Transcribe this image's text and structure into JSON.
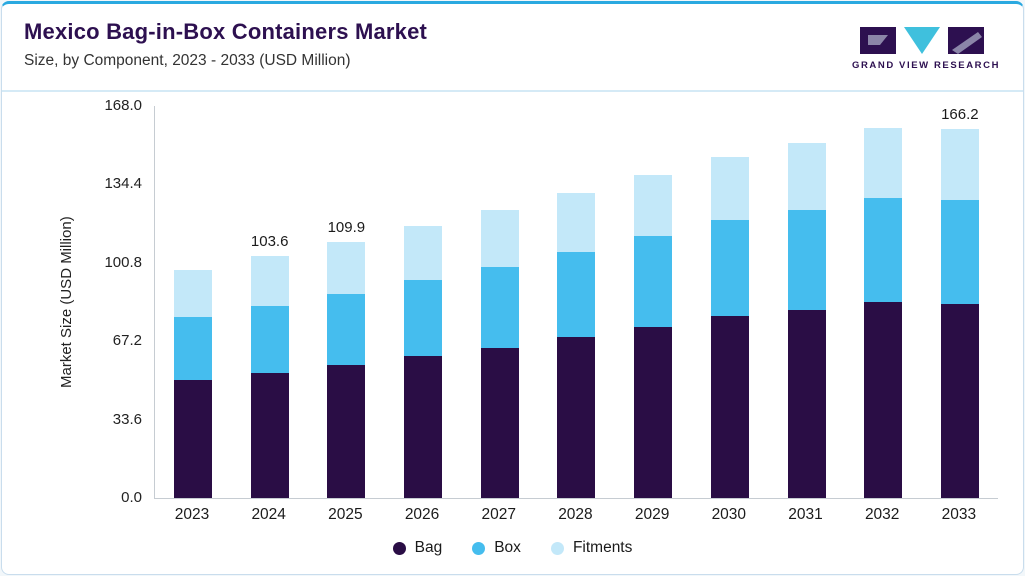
{
  "header": {
    "title": "Mexico Bag-in-Box Containers Market",
    "subtitle": "Size, by Component, 2023 - 2033 (USD Million)"
  },
  "logo": {
    "text": "GRAND VIEW RESEARCH"
  },
  "chart_data": {
    "type": "bar",
    "stacked": true,
    "title": "Mexico Bag-in-Box Containers Market Size, by Component, 2023 - 2033 (USD Million)",
    "ylabel": "Market Size (USD Million)",
    "ylim": [
      0,
      168
    ],
    "yticks": [
      "168.0",
      "134.4",
      "100.8",
      "67.2",
      "33.6",
      "0.0"
    ],
    "grid": false,
    "legend_position": "bottom",
    "categories": [
      "2023",
      "2024",
      "2025",
      "2026",
      "2027",
      "2028",
      "2029",
      "2030",
      "2031",
      "2032",
      "2033"
    ],
    "series": [
      {
        "name": "Bag",
        "color": "#2a0d45",
        "values": [
          50.5,
          53.5,
          57.0,
          61.0,
          64.5,
          69.0,
          73.5,
          78.0,
          80.5,
          84.0,
          87.5
        ]
      },
      {
        "name": "Box",
        "color": "#45bdee",
        "values": [
          27.0,
          29.0,
          30.5,
          32.5,
          34.5,
          36.5,
          39.0,
          41.0,
          43.0,
          44.5,
          46.5
        ]
      },
      {
        "name": "Fitments",
        "color": "#c3e8f9",
        "values": [
          20.4,
          21.1,
          22.4,
          23.1,
          24.3,
          25.4,
          25.8,
          27.0,
          28.5,
          30.0,
          32.2
        ]
      }
    ],
    "totals": [
      97.9,
      103.6,
      109.9,
      116.6,
      123.3,
      130.9,
      138.3,
      146.0,
      152.0,
      158.5,
      166.2
    ],
    "bar_total_labels": {
      "2024": "103.6",
      "2025": "109.9",
      "2033": "166.2"
    }
  },
  "colors": {
    "accent_top": "#2aa9e0",
    "divider": "#d5eaf6",
    "title": "#2d1050",
    "bag": "#2a0d45",
    "box": "#45bdee",
    "fitments": "#c3e8f9"
  }
}
